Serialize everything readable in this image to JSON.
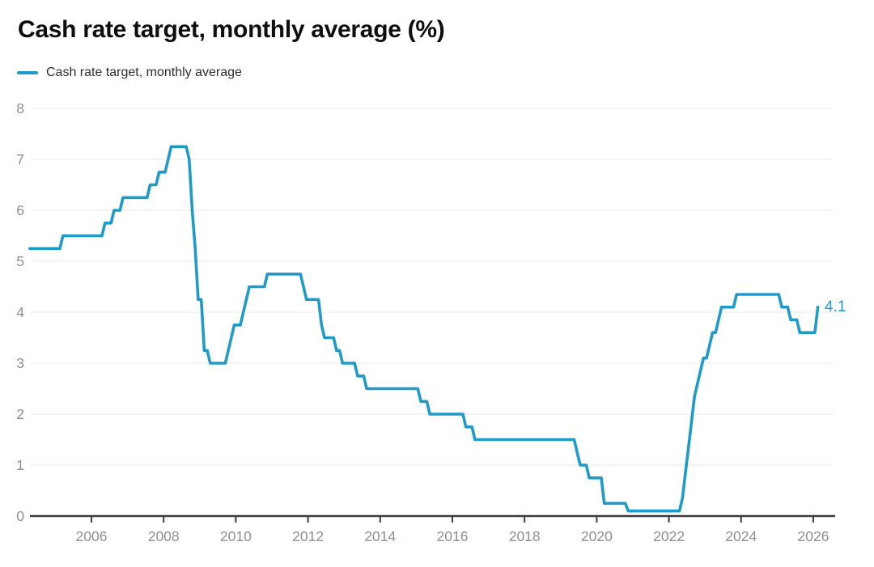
{
  "page": {
    "title": "Cash rate target, monthly average (%)"
  },
  "legend": {
    "label": "Cash rate target, monthly average"
  },
  "annotations": {
    "last_value_label": "4.1"
  },
  "colors": {
    "line": "#1E9BC9",
    "grid": "#e9e9e9",
    "axis": "#3c3c3c",
    "tick_label": "#8f8f8f",
    "title": "#0e0e0e"
  },
  "chart_data": {
    "type": "line",
    "title": "Cash rate target, monthly average (%)",
    "xlabel": "",
    "ylabel": "",
    "ylim": [
      0,
      8
    ],
    "y_ticks": [
      0,
      1,
      2,
      3,
      4,
      5,
      6,
      7,
      8
    ],
    "x_ticks": [
      2006,
      2008,
      2010,
      2012,
      2014,
      2016,
      2018,
      2020,
      2022,
      2024,
      2026
    ],
    "x_range_months": [
      "2004-04",
      "2026-02"
    ],
    "grid": "horizontal",
    "legend_position": "top-left",
    "series": [
      {
        "name": "Cash rate target, monthly average",
        "color": "#1E9BC9",
        "unit": "%",
        "step_changes": [
          [
            "2004-04",
            5.25
          ],
          [
            "2005-03",
            5.5
          ],
          [
            "2006-05",
            5.75
          ],
          [
            "2006-08",
            6.0
          ],
          [
            "2006-11",
            6.25
          ],
          [
            "2007-08",
            6.5
          ],
          [
            "2007-11",
            6.75
          ],
          [
            "2008-02",
            7.0
          ],
          [
            "2008-03",
            7.25
          ],
          [
            "2008-09",
            7.0
          ],
          [
            "2008-10",
            6.0
          ],
          [
            "2008-11",
            5.25
          ],
          [
            "2008-12",
            4.25
          ],
          [
            "2009-02",
            3.25
          ],
          [
            "2009-04",
            3.0
          ],
          [
            "2009-10",
            3.25
          ],
          [
            "2009-11",
            3.5
          ],
          [
            "2009-12",
            3.75
          ],
          [
            "2010-03",
            4.0
          ],
          [
            "2010-04",
            4.25
          ],
          [
            "2010-05",
            4.5
          ],
          [
            "2010-11",
            4.75
          ],
          [
            "2011-11",
            4.5
          ],
          [
            "2011-12",
            4.25
          ],
          [
            "2012-05",
            3.75
          ],
          [
            "2012-06",
            3.5
          ],
          [
            "2012-10",
            3.25
          ],
          [
            "2012-12",
            3.0
          ],
          [
            "2013-05",
            2.75
          ],
          [
            "2013-08",
            2.5
          ],
          [
            "2015-02",
            2.25
          ],
          [
            "2015-05",
            2.0
          ],
          [
            "2016-05",
            1.75
          ],
          [
            "2016-08",
            1.5
          ],
          [
            "2019-06",
            1.25
          ],
          [
            "2019-07",
            1.0
          ],
          [
            "2019-10",
            0.75
          ],
          [
            "2020-03",
            0.25
          ],
          [
            "2020-11",
            0.1
          ],
          [
            "2022-05",
            0.35
          ],
          [
            "2022-06",
            0.85
          ],
          [
            "2022-07",
            1.35
          ],
          [
            "2022-08",
            1.85
          ],
          [
            "2022-09",
            2.35
          ],
          [
            "2022-10",
            2.6
          ],
          [
            "2022-11",
            2.85
          ],
          [
            "2022-12",
            3.1
          ],
          [
            "2023-02",
            3.35
          ],
          [
            "2023-03",
            3.6
          ],
          [
            "2023-05",
            3.85
          ],
          [
            "2023-06",
            4.1
          ],
          [
            "2023-11",
            4.35
          ],
          [
            "2025-02",
            4.1
          ],
          [
            "2025-05",
            3.85
          ],
          [
            "2025-08",
            3.6
          ],
          [
            "2026-02",
            4.1
          ]
        ],
        "last_point": {
          "date": "2026-02",
          "value": 4.1,
          "label": "4.1"
        }
      }
    ]
  }
}
